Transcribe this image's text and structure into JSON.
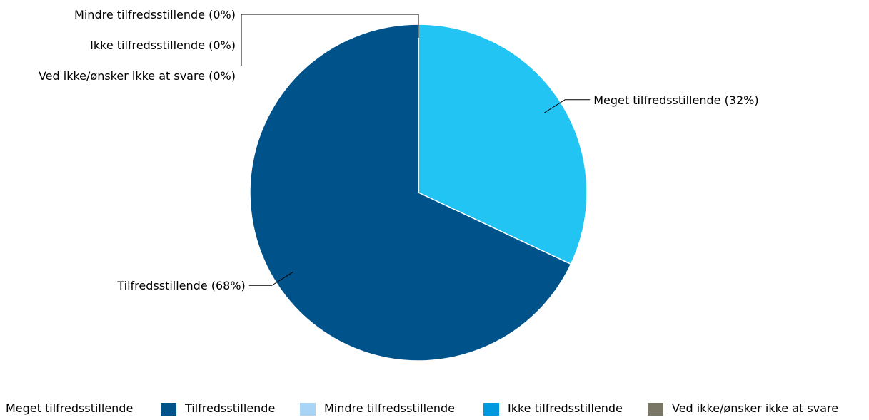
{
  "chart_data": {
    "type": "pie",
    "categories": [
      "Meget tilfredsstillende",
      "Tilfredsstillende",
      "Mindre tilfredsstillende",
      "Ikke tilfredsstillende",
      "Ved ikke/ønsker ikke at svare"
    ],
    "values": [
      32,
      68,
      0,
      0,
      0
    ],
    "slice_labels": [
      "Meget tilfredsstillende (32%)",
      "Tilfredsstillende (68%)",
      "Mindre tilfredsstillende (0%)",
      "Ikke tilfredsstillende (0%)",
      "Ved ikke/ønsker ikke at svare (0%)"
    ],
    "colors": [
      "#22c4f4",
      "#00538a",
      "#a8d5f5",
      "#0098df",
      "#7a7766"
    ],
    "legend_position": "bottom",
    "unit": "%"
  }
}
